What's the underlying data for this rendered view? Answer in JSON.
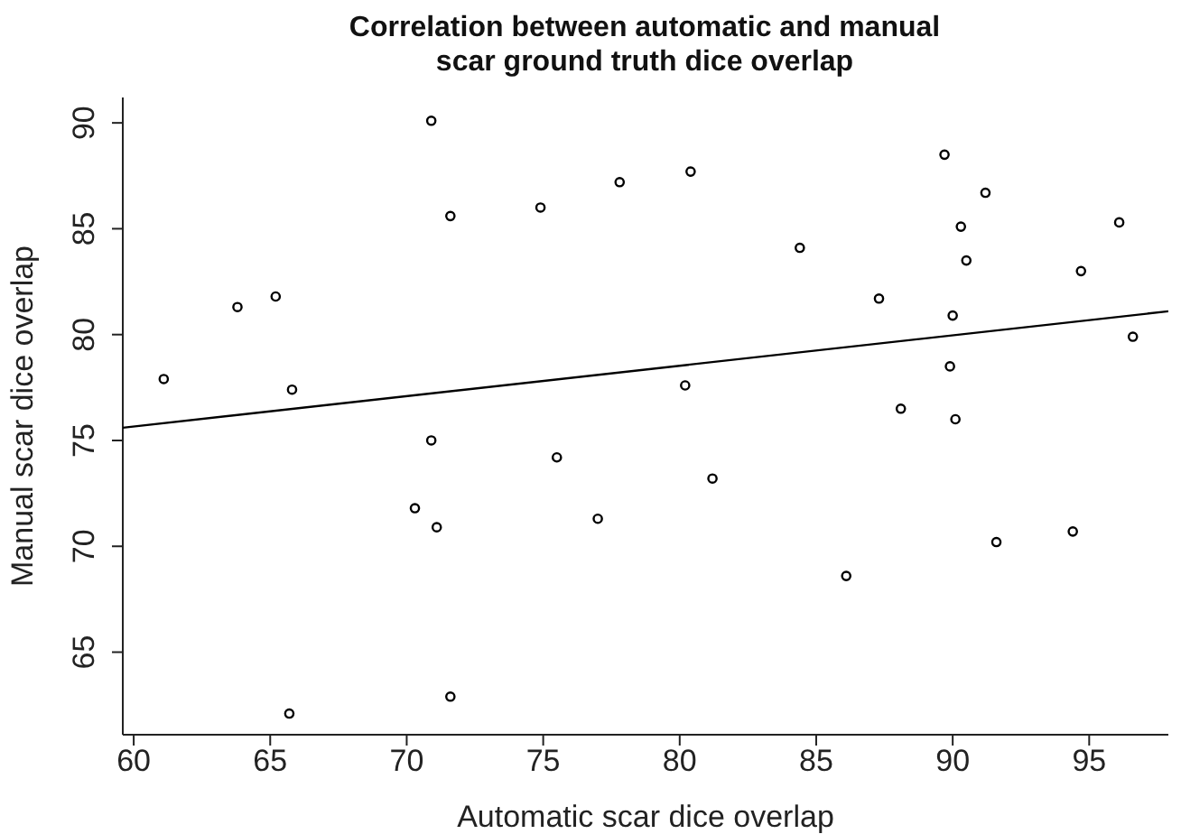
{
  "chart_data": {
    "type": "scatter",
    "title": "Correlation between automatic and manual scar ground truth dice overlap",
    "xlabel": "Automatic scar dice overlap",
    "ylabel": "Manual scar dice overlap",
    "xlim": [
      59.6,
      97.9
    ],
    "ylim": [
      61.1,
      91.2
    ],
    "xticks": [
      60,
      65,
      70,
      75,
      80,
      85,
      90,
      95
    ],
    "yticks": [
      65,
      70,
      75,
      80,
      85,
      90
    ],
    "marker": "circle",
    "grid": false,
    "legend": false,
    "series": [
      {
        "color": "#000000",
        "x": [
          61.1,
          63.8,
          65.2,
          65.8,
          70.9,
          71.6,
          74.9,
          70.9,
          77.8,
          80.4,
          89.7,
          91.2,
          90.3,
          96.1,
          84.4,
          90.5,
          94.7,
          87.3,
          90.0,
          96.6,
          80.2,
          89.9,
          88.1,
          90.1,
          75.5,
          70.3,
          71.1,
          65.7,
          71.6,
          77.0,
          81.2,
          86.1,
          91.6,
          94.4
        ],
        "values": [
          77.9,
          81.3,
          81.8,
          77.4,
          90.1,
          85.6,
          86.0,
          75.0,
          87.2,
          87.7,
          88.5,
          86.7,
          85.1,
          85.3,
          84.1,
          83.5,
          83.0,
          81.7,
          80.9,
          79.9,
          77.6,
          78.5,
          76.5,
          76.0,
          74.2,
          71.8,
          70.9,
          62.1,
          62.9,
          71.3,
          73.2,
          68.6,
          70.2,
          70.7
        ]
      },
      {
        "type": "line",
        "color": "#000000",
        "marker": "none",
        "x": [
          59.6,
          97.9
        ],
        "values": [
          75.6,
          81.1
        ]
      }
    ]
  }
}
